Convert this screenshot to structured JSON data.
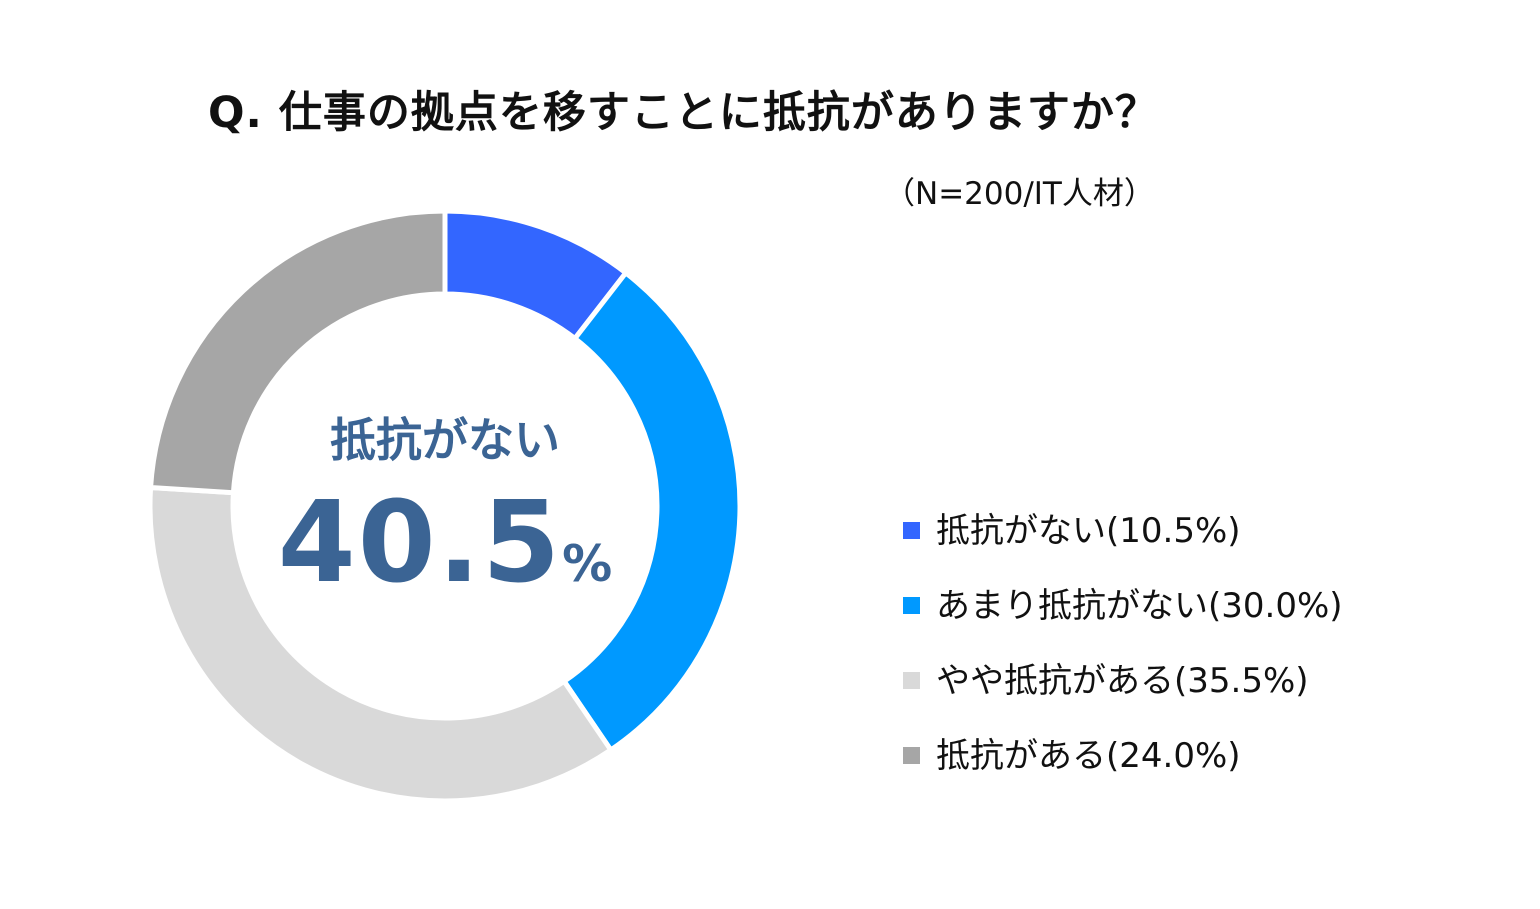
{
  "chart_data": {
    "type": "pie",
    "title": "Q. 仕事の拠点を移すことに抵抗がありますか？",
    "subtitle": "（N=200/IT人材）",
    "categories": [
      "抵抗がない",
      "あまり抵抗がない",
      "やや抵抗がある",
      "抵抗がある"
    ],
    "values": [
      10.5,
      30.0,
      35.5,
      24.0
    ],
    "colors": [
      "#3366ff",
      "#0099ff",
      "#d9d9d9",
      "#a6a6a6"
    ],
    "donut": true,
    "legend_position": "right",
    "legend_labels": [
      "抵抗がない(10.5%)",
      "あまり抵抗がない(30.0%)",
      "やや抵抗がある(35.5%)",
      "抵抗がある(24.0%)"
    ],
    "center_label": "抵抗がない",
    "center_value": "40.5",
    "center_unit": "%"
  }
}
